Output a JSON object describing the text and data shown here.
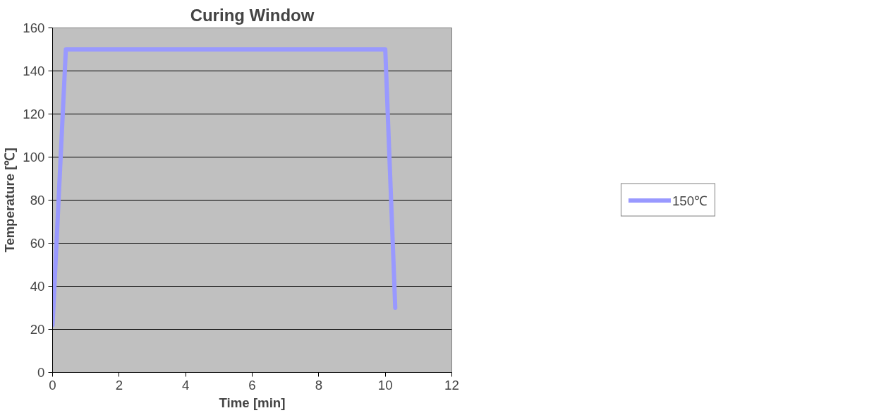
{
  "chart_data": {
    "type": "line",
    "title": "Curing Window",
    "xlabel": "Time [min]",
    "ylabel": "Temperature [℃]",
    "x": [
      0,
      0.4,
      10,
      10.3
    ],
    "series": [
      {
        "name": "150℃",
        "color": "#9999ff",
        "values": [
          22,
          150,
          150,
          30
        ]
      }
    ],
    "xlim": [
      0,
      12
    ],
    "xticks": [
      0,
      2,
      4,
      6,
      8,
      10,
      12
    ],
    "ylim": [
      0,
      160
    ],
    "yticks": [
      0,
      20,
      40,
      60,
      80,
      100,
      120,
      140,
      160
    ],
    "grid": "y",
    "legend": "right",
    "marker": "none",
    "line_style": "solid"
  }
}
